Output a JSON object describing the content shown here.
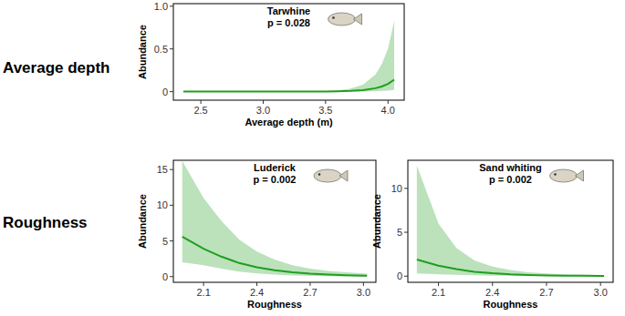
{
  "row_labels": [
    "Average depth",
    "Roughness"
  ],
  "chart_data": [
    {
      "type": "line",
      "title": "Tarwhine",
      "annotation": "p = 0.028",
      "x_label": "Average depth (m)",
      "y_label": "Abundance",
      "color": "#1f9e1f",
      "x": [
        2.36,
        2.6,
        2.8,
        3.0,
        3.2,
        3.4,
        3.5,
        3.6,
        3.7,
        3.8,
        3.9,
        3.95,
        4.0,
        4.05
      ],
      "values": [
        0,
        0,
        0,
        0,
        0,
        0.001,
        0.002,
        0.004,
        0.008,
        0.018,
        0.04,
        0.06,
        0.09,
        0.14
      ],
      "lower": [
        0,
        0,
        0,
        0,
        0,
        0,
        0,
        0,
        0.001,
        0.002,
        0.005,
        0.008,
        0.012,
        0.02
      ],
      "upper": [
        0,
        0,
        0,
        0,
        0.001,
        0.003,
        0.006,
        0.015,
        0.035,
        0.08,
        0.2,
        0.32,
        0.5,
        0.83
      ],
      "xlim": [
        2.28,
        4.13
      ],
      "ylim": [
        -0.1,
        1.03
      ],
      "xticks": [
        2.5,
        {
          "value": 3,
          "label": "3.0"
        },
        3.5,
        {
          "value": 4,
          "label": "4.0"
        }
      ],
      "yticks": [
        0,
        0.5,
        {
          "value": 1,
          "label": "1.0"
        }
      ]
    },
    {
      "type": "line",
      "title": "Luderick",
      "annotation": "p = 0.002",
      "x_label": "Roughness",
      "y_label": "Abundance",
      "color": "#1f9e1f",
      "x": [
        1.98,
        2.1,
        2.2,
        2.3,
        2.4,
        2.5,
        2.6,
        2.7,
        2.8,
        2.9,
        3.0,
        3.02
      ],
      "values": [
        5.6,
        3.9,
        2.8,
        1.9,
        1.3,
        0.9,
        0.6,
        0.4,
        0.27,
        0.18,
        0.12,
        0.11
      ],
      "lower": [
        2.0,
        1.6,
        1.1,
        0.7,
        0.45,
        0.28,
        0.17,
        0.1,
        0.06,
        0.04,
        0.03,
        0.02
      ],
      "upper": [
        16.2,
        11,
        7.8,
        5.2,
        3.5,
        2.4,
        1.6,
        1.1,
        0.8,
        0.6,
        0.45,
        0.42
      ],
      "xlim": [
        1.93,
        3.07
      ],
      "ylim": [
        -0.8,
        16.3
      ],
      "xticks": [
        2.1,
        2.4,
        2.7,
        {
          "value": 3,
          "label": "3.0"
        }
      ],
      "yticks": [
        0,
        5,
        10,
        15
      ]
    },
    {
      "type": "line",
      "title": "Sand whiting",
      "annotation": "p = 0.002",
      "x_label": "Roughness",
      "y_label": "Abundance",
      "color": "#1f9e1f",
      "x": [
        1.98,
        2.1,
        2.2,
        2.3,
        2.4,
        2.5,
        2.6,
        2.7,
        2.8,
        2.9,
        3.0,
        3.02
      ],
      "values": [
        1.9,
        1.2,
        0.8,
        0.5,
        0.33,
        0.21,
        0.14,
        0.09,
        0.06,
        0.04,
        0.025,
        0.02
      ],
      "lower": [
        0.3,
        0.22,
        0.15,
        0.1,
        0.06,
        0.04,
        0.025,
        0.015,
        0.01,
        0.005,
        0.003,
        0.002
      ],
      "upper": [
        12.6,
        6,
        3.2,
        1.8,
        1.1,
        0.7,
        0.45,
        0.3,
        0.2,
        0.15,
        0.12,
        0.11
      ],
      "xlim": [
        1.93,
        3.07
      ],
      "ylim": [
        -0.7,
        13.2
      ],
      "xticks": [
        2.1,
        2.4,
        2.7,
        {
          "value": 3,
          "label": "3.0"
        }
      ],
      "yticks": [
        0,
        5,
        10
      ]
    }
  ]
}
